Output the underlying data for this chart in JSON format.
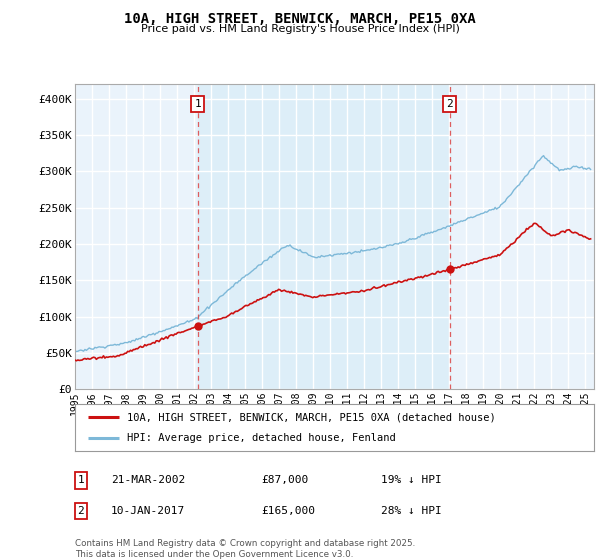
{
  "title": "10A, HIGH STREET, BENWICK, MARCH, PE15 0XA",
  "subtitle": "Price paid vs. HM Land Registry's House Price Index (HPI)",
  "ylim": [
    0,
    420000
  ],
  "yticks": [
    0,
    50000,
    100000,
    150000,
    200000,
    250000,
    300000,
    350000,
    400000
  ],
  "ytick_labels": [
    "£0",
    "£50K",
    "£100K",
    "£150K",
    "£200K",
    "£250K",
    "£300K",
    "£350K",
    "£400K"
  ],
  "xlim_start": 1995.0,
  "xlim_end": 2025.5,
  "hpi_color": "#7db8d8",
  "price_color": "#cc1111",
  "vline_color": "#dd4444",
  "shade_color": "#ddeef8",
  "sale1_date_label": "21-MAR-2002",
  "sale1_price_label": "£87,000",
  "sale1_hpi_label": "19% ↓ HPI",
  "sale1_year": 2002.22,
  "sale1_price": 87000,
  "sale2_date_label": "10-JAN-2017",
  "sale2_price_label": "£165,000",
  "sale2_hpi_label": "28% ↓ HPI",
  "sale2_year": 2017.03,
  "sale2_price": 165000,
  "legend_label1": "10A, HIGH STREET, BENWICK, MARCH, PE15 0XA (detached house)",
  "legend_label2": "HPI: Average price, detached house, Fenland",
  "footnote": "Contains HM Land Registry data © Crown copyright and database right 2025.\nThis data is licensed under the Open Government Licence v3.0.",
  "plot_bg_color": "#eaf3fb",
  "grid_color": "#ffffff",
  "box_color": "#cc1111"
}
